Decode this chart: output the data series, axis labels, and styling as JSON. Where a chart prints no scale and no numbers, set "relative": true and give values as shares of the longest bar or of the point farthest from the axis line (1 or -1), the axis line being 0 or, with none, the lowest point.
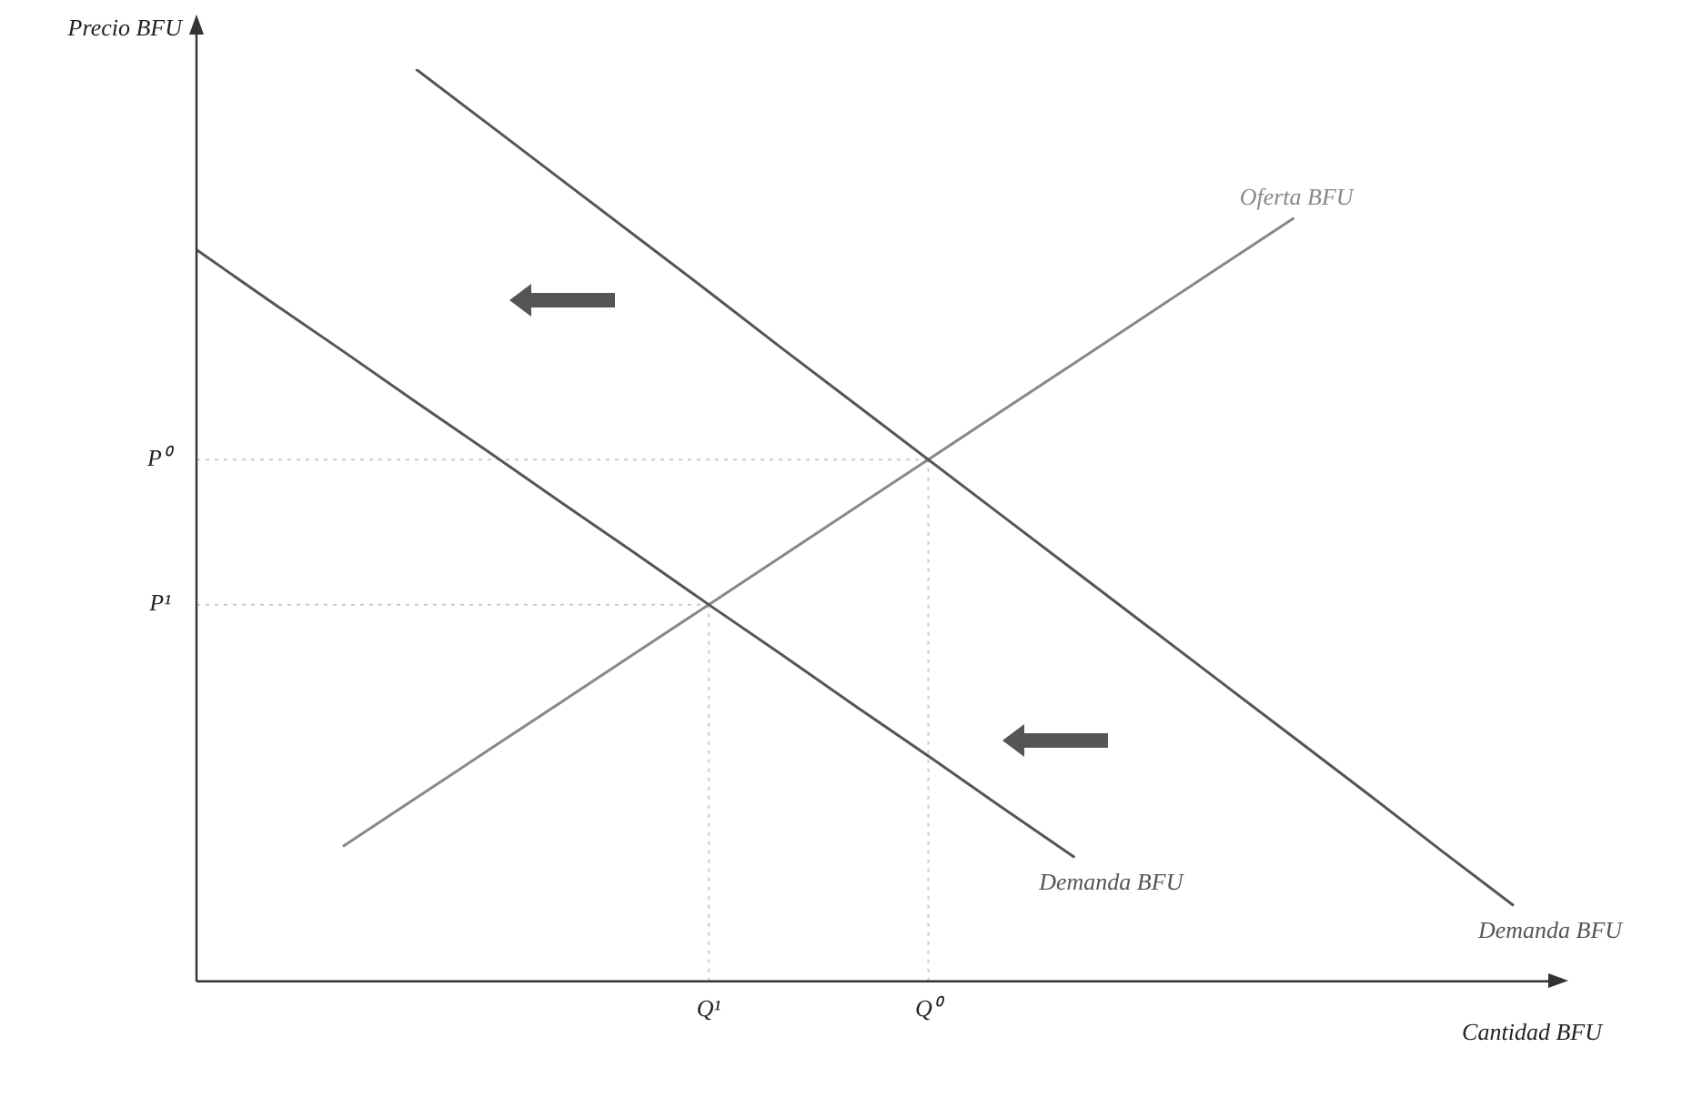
{
  "chart_data": {
    "type": "line",
    "relative": true,
    "xlabel": "Cantidad BFU",
    "ylabel": "Precio BFU",
    "legend": false,
    "marker": "none",
    "line_style": "solid",
    "categories": [
      null,
      null,
      null,
      null,
      null,
      null,
      null,
      "Q¹",
      null,
      null,
      "Q⁰",
      null,
      null,
      null,
      null,
      null,
      null,
      null,
      null
    ],
    "series": [
      {
        "name": "Demanda BFU",
        "color": "#555555",
        "values": [
          null,
          null,
          null,
          1,
          0.939,
          0.878,
          0.817,
          0.756,
          0.694,
          0.633,
          0.572,
          0.511,
          0.45,
          0.389,
          0.328,
          0.267,
          0.206,
          0.144,
          0.083
        ]
      },
      {
        "name": "Demanda BFU",
        "color": "#555555",
        "values": [
          0.802,
          0.746,
          0.691,
          0.635,
          0.58,
          0.524,
          0.469,
          0.413,
          0.358,
          0.302,
          0.247,
          0.191,
          0.136,
          null,
          null,
          null,
          null,
          null,
          null
        ]
      },
      {
        "name": "Oferta BFU",
        "color": "#888888",
        "values": [
          null,
          null,
          0.148,
          0.201,
          0.254,
          0.307,
          0.36,
          0.413,
          0.466,
          0.519,
          0.572,
          0.625,
          0.678,
          0.731,
          0.784,
          0.837,
          null,
          null,
          null
        ]
      }
    ],
    "ref_lines": [
      {
        "axis": "y",
        "value": 0.572,
        "label": "P⁰",
        "color": "#cccccc",
        "line_style": "dotted"
      },
      {
        "axis": "y",
        "value": 0.413,
        "label": "P¹",
        "color": "#cccccc",
        "line_style": "dotted"
      },
      {
        "axis": "x",
        "value": "Q¹",
        "color": "#cccccc",
        "line_style": "dotted"
      },
      {
        "axis": "x",
        "value": "Q⁰",
        "color": "#cccccc",
        "line_style": "dotted"
      }
    ]
  }
}
